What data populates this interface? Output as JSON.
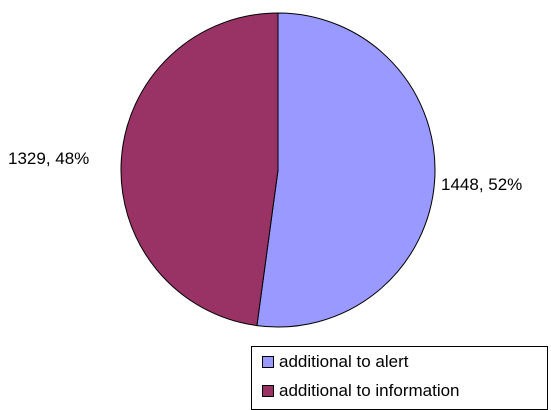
{
  "chart_data": {
    "type": "pie",
    "title": "",
    "slices": [
      {
        "name": "additional to alert",
        "value": 1448,
        "percent": 52,
        "label": "1448, 52%",
        "color": "#9999ff"
      },
      {
        "name": "additional to information",
        "value": 1329,
        "percent": 48,
        "label": "1329, 48%",
        "color": "#993366"
      }
    ],
    "legend": {
      "placement": "bottom-right",
      "entries": [
        "additional to alert",
        "additional to information"
      ]
    }
  }
}
